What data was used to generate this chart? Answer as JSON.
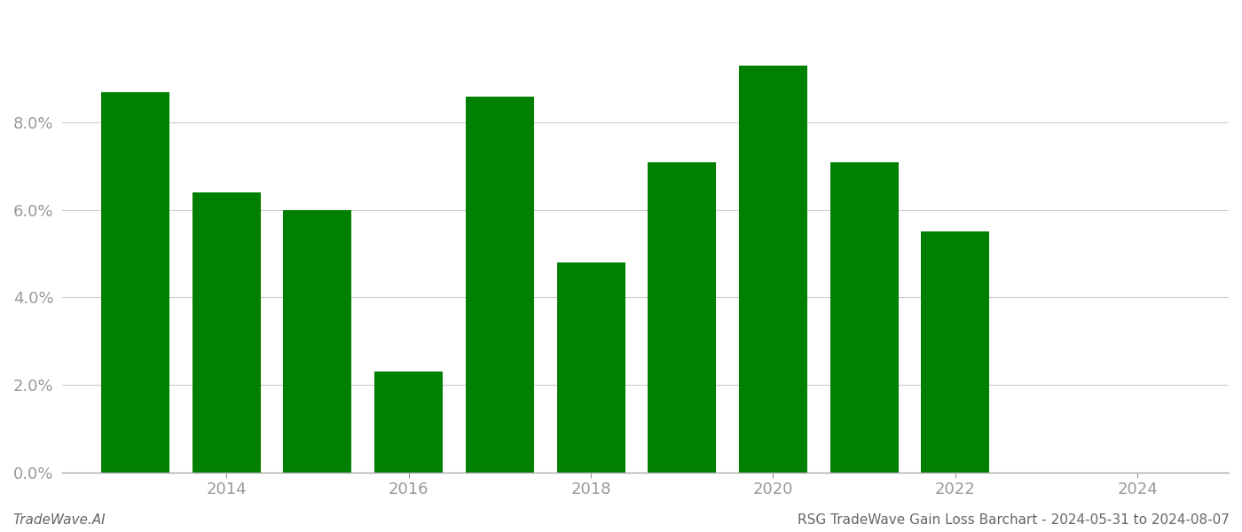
{
  "years": [
    2013,
    2014,
    2015,
    2016,
    2017,
    2018,
    2019,
    2020,
    2021,
    2022,
    2023
  ],
  "values": [
    0.087,
    0.064,
    0.06,
    0.023,
    0.086,
    0.048,
    0.071,
    0.093,
    0.071,
    0.055,
    0.0
  ],
  "bar_color": "#008000",
  "background_color": "#ffffff",
  "grid_color": "#cccccc",
  "axis_label_color": "#999999",
  "yticks": [
    0.0,
    0.02,
    0.04,
    0.06,
    0.08
  ],
  "xlim_left": 2012.2,
  "xlim_right": 2025.0,
  "ylim": [
    0.0,
    0.105
  ],
  "footer_left": "TradeWave.AI",
  "footer_right": "RSG TradeWave Gain Loss Barchart - 2024-05-31 to 2024-08-07",
  "footer_fontsize": 11,
  "tick_fontsize": 13,
  "bar_width": 0.75
}
